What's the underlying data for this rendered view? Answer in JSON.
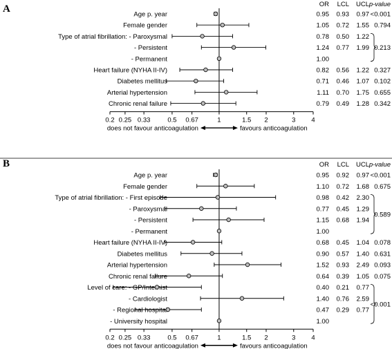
{
  "chart_data": [
    {
      "type": "forest",
      "panel_label": "A",
      "x_scale": "log",
      "xlim": [
        0.2,
        4
      ],
      "x_ticks": [
        "0.2",
        "0.25",
        "0.33",
        "0.5",
        "0.67",
        "1",
        "1.5",
        "2",
        "3",
        "4"
      ],
      "x_tick_values": [
        0.2,
        0.25,
        0.33,
        0.5,
        0.67,
        1,
        1.5,
        2,
        3,
        4
      ],
      "reference_line": 1,
      "xlabel_left": "does not favour anticoagulation",
      "xlabel_right": "favours anticoagulation",
      "columns": [
        "OR",
        "LCL",
        "UCL",
        "p-value"
      ],
      "rows": [
        {
          "label": "Age p. year",
          "or": 0.95,
          "lcl": 0.93,
          "ucl": 0.97,
          "or_text": "0.95",
          "lcl_text": "0.93",
          "ucl_text": "0.97",
          "p": "<0.001"
        },
        {
          "label": "Female gender",
          "or": 1.05,
          "lcl": 0.72,
          "ucl": 1.55,
          "or_text": "1.05",
          "lcl_text": "0.72",
          "ucl_text": "1.55",
          "p": "0.794"
        },
        {
          "label": "Type of atrial fibrillation: - Paroxysmal",
          "or": 0.78,
          "lcl": 0.5,
          "ucl": 1.22,
          "or_text": "0.78",
          "lcl_text": "0.50",
          "ucl_text": "1.22",
          "p": ""
        },
        {
          "label": "- Persistent",
          "or": 1.24,
          "lcl": 0.77,
          "ucl": 1.99,
          "or_text": "1.24",
          "lcl_text": "0.77",
          "ucl_text": "1.99",
          "p": ""
        },
        {
          "label": "- Permanent",
          "or": 1.0,
          "lcl": null,
          "ucl": null,
          "or_text": "1.00",
          "lcl_text": "",
          "ucl_text": "",
          "p": ""
        },
        {
          "label": "Heart failure (NYHA II-IV)",
          "or": 0.82,
          "lcl": 0.56,
          "ucl": 1.22,
          "or_text": "0.82",
          "lcl_text": "0.56",
          "ucl_text": "1.22",
          "p": "0.327"
        },
        {
          "label": "Diabetes mellitus",
          "or": 0.71,
          "lcl": 0.46,
          "ucl": 1.07,
          "or_text": "0.71",
          "lcl_text": "0.46",
          "ucl_text": "1.07",
          "p": "0.102"
        },
        {
          "label": "Arterial hypertension",
          "or": 1.11,
          "lcl": 0.7,
          "ucl": 1.75,
          "or_text": "1.11",
          "lcl_text": "0.70",
          "ucl_text": "1.75",
          "p": "0.655"
        },
        {
          "label": "Chronic renal failure",
          "or": 0.79,
          "lcl": 0.49,
          "ucl": 1.28,
          "or_text": "0.79",
          "lcl_text": "0.49",
          "ucl_text": "1.28",
          "p": "0.342"
        }
      ],
      "groups": [
        {
          "rows": [
            2,
            4
          ],
          "p": "0.213"
        }
      ]
    },
    {
      "type": "forest",
      "panel_label": "B",
      "x_scale": "log",
      "xlim": [
        0.2,
        4
      ],
      "x_ticks": [
        "0.2",
        "0.25",
        "0.33",
        "0.5",
        "0.67",
        "1",
        "1.5",
        "2",
        "3",
        "4"
      ],
      "x_tick_values": [
        0.2,
        0.25,
        0.33,
        0.5,
        0.67,
        1,
        1.5,
        2,
        3,
        4
      ],
      "reference_line": 1,
      "xlabel_left": "does not favour anticoagulation",
      "xlabel_right": "favours anticoagulation",
      "columns": [
        "OR",
        "LCL",
        "UCL",
        "p-value"
      ],
      "rows": [
        {
          "label": "Age p. year",
          "or": 0.95,
          "lcl": 0.92,
          "ucl": 0.97,
          "or_text": "0.95",
          "lcl_text": "0.92",
          "ucl_text": "0.97",
          "p": "<0.001"
        },
        {
          "label": "Female gender",
          "or": 1.1,
          "lcl": 0.72,
          "ucl": 1.68,
          "or_text": "1.10",
          "lcl_text": "0.72",
          "ucl_text": "1.68",
          "p": "0.675"
        },
        {
          "label": "Type of atrial fibrillation: - First episode",
          "or": 0.98,
          "lcl": 0.42,
          "ucl": 2.3,
          "or_text": "0.98",
          "lcl_text": "0.42",
          "ucl_text": "2.30",
          "p": ""
        },
        {
          "label": "- Paroxysmal",
          "or": 0.77,
          "lcl": 0.45,
          "ucl": 1.29,
          "or_text": "0.77",
          "lcl_text": "0.45",
          "ucl_text": "1.29",
          "p": ""
        },
        {
          "label": "- Persistent",
          "or": 1.15,
          "lcl": 0.68,
          "ucl": 1.94,
          "or_text": "1.15",
          "lcl_text": "0.68",
          "ucl_text": "1.94",
          "p": ""
        },
        {
          "label": "- Permanent",
          "or": 1.0,
          "lcl": null,
          "ucl": null,
          "or_text": "1.00",
          "lcl_text": "",
          "ucl_text": "",
          "p": ""
        },
        {
          "label": "Heart failure (NYHA II-IV)",
          "or": 0.68,
          "lcl": 0.45,
          "ucl": 1.04,
          "or_text": "0.68",
          "lcl_text": "0.45",
          "ucl_text": "1.04",
          "p": "0.078"
        },
        {
          "label": "Diabetes mellitus",
          "or": 0.9,
          "lcl": 0.57,
          "ucl": 1.4,
          "or_text": "0.90",
          "lcl_text": "0.57",
          "ucl_text": "1.40",
          "p": "0.631"
        },
        {
          "label": "Arterial hypertension",
          "or": 1.52,
          "lcl": 0.93,
          "ucl": 2.49,
          "or_text": "1.52",
          "lcl_text": "0.93",
          "ucl_text": "2.49",
          "p": "0.093"
        },
        {
          "label": "Chronic renal failure",
          "or": 0.64,
          "lcl": 0.39,
          "ucl": 1.05,
          "or_text": "0.64",
          "lcl_text": "0.39",
          "ucl_text": "1.05",
          "p": "0.075"
        },
        {
          "label": "Level of care: - GP/Internist",
          "or": 0.4,
          "lcl": 0.21,
          "ucl": 0.77,
          "or_text": "0.40",
          "lcl_text": "0.21",
          "ucl_text": "0.77",
          "p": ""
        },
        {
          "label": "- Cardiologist",
          "or": 1.4,
          "lcl": 0.76,
          "ucl": 2.59,
          "or_text": "1.40",
          "lcl_text": "0.76",
          "ucl_text": "2.59",
          "p": ""
        },
        {
          "label": "- Regional hospital",
          "or": 0.47,
          "lcl": 0.29,
          "ucl": 0.77,
          "or_text": "0.47",
          "lcl_text": "0.29",
          "ucl_text": "0.77",
          "p": ""
        },
        {
          "label": "- University hospital",
          "or": 1.0,
          "lcl": null,
          "ucl": null,
          "or_text": "1.00",
          "lcl_text": "",
          "ucl_text": "",
          "p": ""
        }
      ],
      "groups": [
        {
          "rows": [
            2,
            5
          ],
          "p": "0.589"
        },
        {
          "rows": [
            10,
            13
          ],
          "p": "<0.001"
        }
      ]
    }
  ]
}
